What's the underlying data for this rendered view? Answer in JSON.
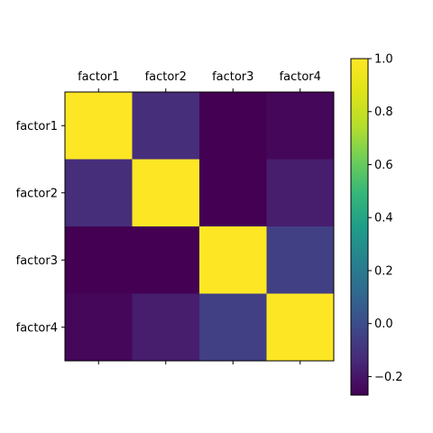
{
  "chart_data": {
    "type": "heatmap",
    "title": "",
    "xlabel": "",
    "ylabel": "",
    "x_labels": [
      "factor1",
      "factor2",
      "factor3",
      "factor4"
    ],
    "y_labels": [
      "factor1",
      "factor2",
      "factor3",
      "factor4"
    ],
    "x_tick_position": "top",
    "grid": false,
    "colormap": "viridis",
    "values": [
      [
        1.0,
        -0.12,
        -0.27,
        -0.25
      ],
      [
        -0.12,
        1.0,
        -0.27,
        -0.18
      ],
      [
        -0.27,
        -0.27,
        1.0,
        -0.05
      ],
      [
        -0.25,
        -0.18,
        -0.05,
        1.0
      ]
    ],
    "colorbar": {
      "range": [
        -0.27,
        1.0
      ],
      "ticks": [
        -0.2,
        0.0,
        0.2,
        0.4,
        0.6,
        0.8,
        1.0
      ],
      "tick_labels": [
        "−0.2",
        "0.0",
        "0.2",
        "0.4",
        "0.6",
        "0.8",
        "1.0"
      ]
    }
  }
}
